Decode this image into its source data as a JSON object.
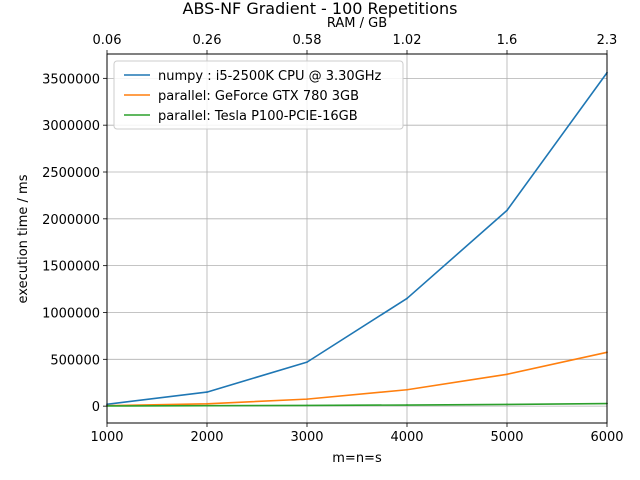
{
  "chart_data": {
    "type": "line",
    "title": "ABS-NF Gradient - 100 Repetitions",
    "xlabel": "m=n=s",
    "ylabel": "execution time / ms",
    "secondary_xlabel": "RAM / GB",
    "x": [
      1000,
      2000,
      3000,
      4000,
      5000,
      6000
    ],
    "xlim": [
      1000,
      6000
    ],
    "ylim": [
      -180000,
      3760000
    ],
    "x_ticks": [
      "1000",
      "2000",
      "3000",
      "4000",
      "5000",
      "6000"
    ],
    "y_ticks": [
      0,
      500000,
      1000000,
      1500000,
      2000000,
      2500000,
      3000000,
      3500000
    ],
    "y_tick_labels": [
      "0",
      "500000",
      "1000000",
      "1500000",
      "2000000",
      "2500000",
      "3000000",
      "3500000"
    ],
    "secondary_x_ticks": [
      "0.06",
      "0.26",
      "0.58",
      "1.02",
      "1.6",
      "2.3"
    ],
    "grid": true,
    "legend_position": "top-left",
    "series": [
      {
        "name": "numpy : i5-2500K CPU @ 3.30GHz",
        "color": "#1f77b4",
        "values": [
          20000,
          150000,
          470000,
          1150000,
          2090000,
          3560000
        ]
      },
      {
        "name": "parallel: GeForce GTX 780 3GB",
        "color": "#ff7f0e",
        "values": [
          5000,
          25000,
          75000,
          175000,
          340000,
          575000
        ]
      },
      {
        "name": "parallel: Tesla P100-PCIE-16GB",
        "color": "#2ca02c",
        "values": [
          2000,
          5000,
          8000,
          12000,
          18000,
          28000
        ]
      }
    ]
  }
}
